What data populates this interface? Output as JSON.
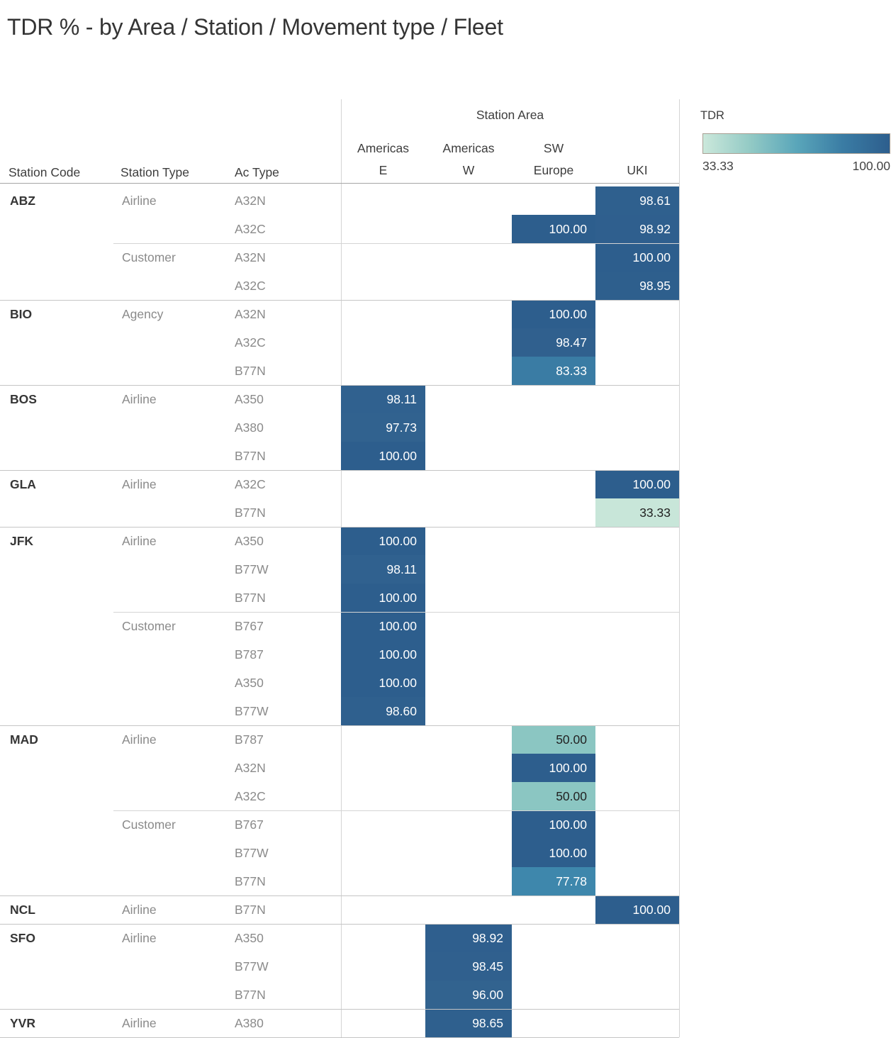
{
  "title": "TDR % - by Area / Station / Movement type / Fleet",
  "table": {
    "row_headers": [
      "Station Code",
      "Station Type",
      "Ac Type"
    ],
    "col_group_title": "Station Area",
    "col_headers": [
      {
        "label": "Americas E",
        "lines": [
          "Americas",
          "E"
        ]
      },
      {
        "label": "Americas W",
        "lines": [
          "Americas",
          "W"
        ]
      },
      {
        "label": "SW Europe",
        "lines": [
          "SW",
          "Europe"
        ]
      },
      {
        "label": "UKI",
        "lines": [
          "UKI"
        ]
      }
    ]
  },
  "legend": {
    "title": "TDR",
    "min_label": "33.33",
    "max_label": "100.00",
    "gradient": [
      "#cbe8db",
      "#93cac5",
      "#5aa6ba",
      "#3a7ca4",
      "#2d5e8d"
    ],
    "border_color": "#a89f93"
  },
  "colors": {
    "33.33": {
      "bg": "#c8e6d9",
      "fg": "#222222"
    },
    "50.00": {
      "bg": "#8bc6c2",
      "fg": "#222222"
    },
    "77.78": {
      "bg": "#3e87ac",
      "fg": "#ffffff"
    },
    "83.33": {
      "bg": "#3a7ca4",
      "fg": "#ffffff"
    },
    "96.00": {
      "bg": "#32638f",
      "fg": "#ffffff"
    },
    "97.73": {
      "bg": "#31628f",
      "fg": "#ffffff"
    },
    "98.11": {
      "bg": "#30618f",
      "fg": "#ffffff"
    },
    "98.45": {
      "bg": "#30608e",
      "fg": "#ffffff"
    },
    "98.47": {
      "bg": "#30608e",
      "fg": "#ffffff"
    },
    "98.60": {
      "bg": "#2f608e",
      "fg": "#ffffff"
    },
    "98.61": {
      "bg": "#2f608e",
      "fg": "#ffffff"
    },
    "98.65": {
      "bg": "#2f608e",
      "fg": "#ffffff"
    },
    "98.92": {
      "bg": "#2f5f8e",
      "fg": "#ffffff"
    },
    "98.95": {
      "bg": "#2e5f8d",
      "fg": "#ffffff"
    },
    "100.00": {
      "bg": "#2d5e8d",
      "fg": "#ffffff"
    }
  },
  "chart_data": {
    "type": "heatmap",
    "title": "TDR % - by Area / Station / Movement type / Fleet",
    "value_label": "TDR",
    "value_range": [
      33.33,
      100.0
    ],
    "areas": [
      "Americas E",
      "Americas W",
      "SW Europe",
      "UKI"
    ],
    "rows": [
      {
        "station": "ABZ",
        "stype": "Airline",
        "ac": "A32N",
        "sep": "station",
        "values": [
          null,
          null,
          null,
          98.61
        ]
      },
      {
        "station": "",
        "stype": "",
        "ac": "A32C",
        "sep": null,
        "values": [
          null,
          null,
          100.0,
          98.92
        ]
      },
      {
        "station": "",
        "stype": "Customer",
        "ac": "A32N",
        "sep": "type",
        "values": [
          null,
          null,
          null,
          100.0
        ]
      },
      {
        "station": "",
        "stype": "",
        "ac": "A32C",
        "sep": null,
        "values": [
          null,
          null,
          null,
          98.95
        ]
      },
      {
        "station": "BIO",
        "stype": "Agency",
        "ac": "A32N",
        "sep": "station",
        "values": [
          null,
          null,
          100.0,
          null
        ]
      },
      {
        "station": "",
        "stype": "",
        "ac": "A32C",
        "sep": null,
        "values": [
          null,
          null,
          98.47,
          null
        ]
      },
      {
        "station": "",
        "stype": "",
        "ac": "B77N",
        "sep": null,
        "values": [
          null,
          null,
          83.33,
          null
        ]
      },
      {
        "station": "BOS",
        "stype": "Airline",
        "ac": "A350",
        "sep": "station",
        "values": [
          98.11,
          null,
          null,
          null
        ]
      },
      {
        "station": "",
        "stype": "",
        "ac": "A380",
        "sep": null,
        "values": [
          97.73,
          null,
          null,
          null
        ]
      },
      {
        "station": "",
        "stype": "",
        "ac": "B77N",
        "sep": null,
        "values": [
          100.0,
          null,
          null,
          null
        ]
      },
      {
        "station": "GLA",
        "stype": "Airline",
        "ac": "A32C",
        "sep": "station",
        "values": [
          null,
          null,
          null,
          100.0
        ]
      },
      {
        "station": "",
        "stype": "",
        "ac": "B77N",
        "sep": null,
        "values": [
          null,
          null,
          null,
          33.33
        ]
      },
      {
        "station": "JFK",
        "stype": "Airline",
        "ac": "A350",
        "sep": "station",
        "values": [
          100.0,
          null,
          null,
          null
        ]
      },
      {
        "station": "",
        "stype": "",
        "ac": "B77W",
        "sep": null,
        "values": [
          98.11,
          null,
          null,
          null
        ]
      },
      {
        "station": "",
        "stype": "",
        "ac": "B77N",
        "sep": null,
        "values": [
          100.0,
          null,
          null,
          null
        ]
      },
      {
        "station": "",
        "stype": "Customer",
        "ac": "B767",
        "sep": "type",
        "values": [
          100.0,
          null,
          null,
          null
        ]
      },
      {
        "station": "",
        "stype": "",
        "ac": "B787",
        "sep": null,
        "values": [
          100.0,
          null,
          null,
          null
        ]
      },
      {
        "station": "",
        "stype": "",
        "ac": "A350",
        "sep": null,
        "values": [
          100.0,
          null,
          null,
          null
        ]
      },
      {
        "station": "",
        "stype": "",
        "ac": "B77W",
        "sep": null,
        "values": [
          98.6,
          null,
          null,
          null
        ]
      },
      {
        "station": "MAD",
        "stype": "Airline",
        "ac": "B787",
        "sep": "station",
        "values": [
          null,
          null,
          50.0,
          null
        ]
      },
      {
        "station": "",
        "stype": "",
        "ac": "A32N",
        "sep": null,
        "values": [
          null,
          null,
          100.0,
          null
        ]
      },
      {
        "station": "",
        "stype": "",
        "ac": "A32C",
        "sep": null,
        "values": [
          null,
          null,
          50.0,
          null
        ]
      },
      {
        "station": "",
        "stype": "Customer",
        "ac": "B767",
        "sep": "type",
        "values": [
          null,
          null,
          100.0,
          null
        ]
      },
      {
        "station": "",
        "stype": "",
        "ac": "B77W",
        "sep": null,
        "values": [
          null,
          null,
          100.0,
          null
        ]
      },
      {
        "station": "",
        "stype": "",
        "ac": "B77N",
        "sep": null,
        "values": [
          null,
          null,
          77.78,
          null
        ]
      },
      {
        "station": "NCL",
        "stype": "Airline",
        "ac": "B77N",
        "sep": "station",
        "values": [
          null,
          null,
          null,
          100.0
        ]
      },
      {
        "station": "SFO",
        "stype": "Airline",
        "ac": "A350",
        "sep": "station",
        "values": [
          null,
          98.92,
          null,
          null
        ]
      },
      {
        "station": "",
        "stype": "",
        "ac": "B77W",
        "sep": null,
        "values": [
          null,
          98.45,
          null,
          null
        ]
      },
      {
        "station": "",
        "stype": "",
        "ac": "B77N",
        "sep": null,
        "values": [
          null,
          96.0,
          null,
          null
        ]
      },
      {
        "station": "YVR",
        "stype": "Airline",
        "ac": "A380",
        "sep": "station",
        "values": [
          null,
          98.65,
          null,
          null
        ]
      }
    ]
  }
}
